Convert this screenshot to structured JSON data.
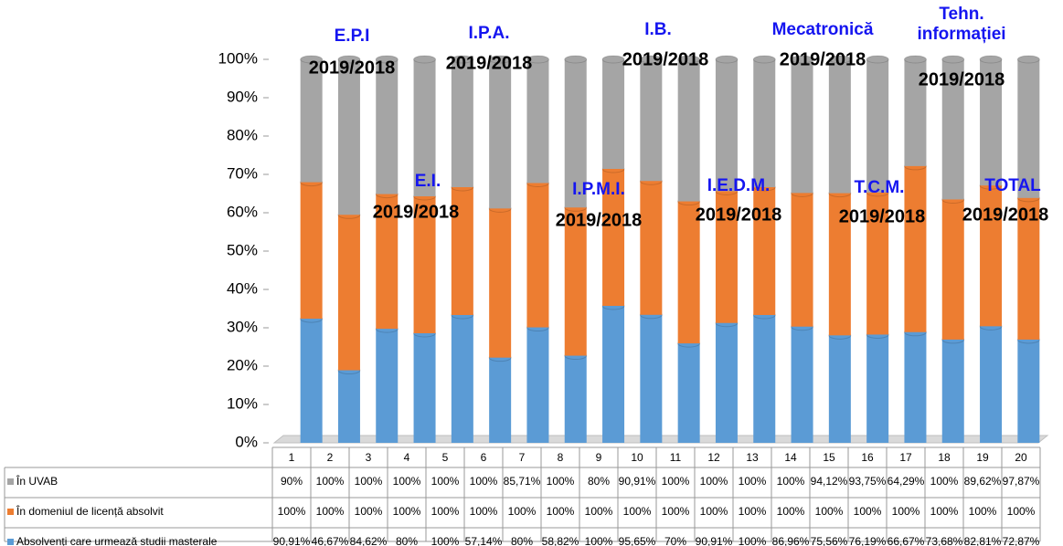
{
  "chart_data": {
    "type": "stacked_percent_bar",
    "categories": [
      "1",
      "2",
      "3",
      "4",
      "5",
      "6",
      "7",
      "8",
      "9",
      "10",
      "11",
      "12",
      "13",
      "14",
      "15",
      "16",
      "17",
      "18",
      "19",
      "20"
    ],
    "series": [
      {
        "name": "Absolvenți care urmează studii masterale",
        "color": "#5b9bd5",
        "values": [
          90.91,
          46.67,
          84.62,
          80,
          100,
          57.14,
          80,
          58.82,
          100,
          95.65,
          70,
          90.91,
          100,
          86.96,
          75.56,
          76.19,
          66.67,
          73.68,
          82.81,
          72.87
        ],
        "value_labels": [
          "90,91%",
          "46,67%",
          "84,62%",
          "80%",
          "100%",
          "57,14%",
          "80%",
          "58,82%",
          "100%",
          "95,65%",
          "70%",
          "90,91%",
          "100%",
          "86,96%",
          "75,56%",
          "76,19%",
          "66,67%",
          "73,68%",
          "82,81%",
          "72,87%"
        ]
      },
      {
        "name": "În domeniul de licență absolvit",
        "color": "#ed7d31",
        "values": [
          100,
          100,
          100,
          100,
          100,
          100,
          100,
          100,
          100,
          100,
          100,
          100,
          100,
          100,
          100,
          100,
          100,
          100,
          100,
          100
        ],
        "value_labels": [
          "100%",
          "100%",
          "100%",
          "100%",
          "100%",
          "100%",
          "100%",
          "100%",
          "100%",
          "100%",
          "100%",
          "100%",
          "100%",
          "100%",
          "100%",
          "100%",
          "100%",
          "100%",
          "100%",
          "100%"
        ]
      },
      {
        "name": "În UVAB",
        "color": "#a5a5a5",
        "values": [
          90,
          100,
          100,
          100,
          100,
          100,
          85.71,
          100,
          80,
          90.91,
          100,
          100,
          100,
          100,
          94.12,
          93.75,
          64.29,
          100,
          89.62,
          97.87
        ],
        "value_labels": [
          "90%",
          "100%",
          "100%",
          "100%",
          "100%",
          "100%",
          "85,71%",
          "100%",
          "80%",
          "90,91%",
          "100%",
          "100%",
          "100%",
          "100%",
          "94,12%",
          "93,75%",
          "64,29%",
          "100%",
          "89,62%",
          "97,87%"
        ]
      }
    ],
    "ylim": [
      0,
      100
    ],
    "yticks": [
      {
        "value": 0,
        "label": "0%"
      },
      {
        "value": 10,
        "label": "10%"
      },
      {
        "value": 20,
        "label": "20%"
      },
      {
        "value": 30,
        "label": "30%"
      },
      {
        "value": 40,
        "label": "40%"
      },
      {
        "value": 50,
        "label": "50%"
      },
      {
        "value": 60,
        "label": "60%"
      },
      {
        "value": 70,
        "label": "70%"
      },
      {
        "value": 80,
        "label": "80%"
      },
      {
        "value": 90,
        "label": "90%"
      },
      {
        "value": 100,
        "label": "100%"
      }
    ],
    "annotations": [
      {
        "label": "E.P.I",
        "period": "2019/2018"
      },
      {
        "label": "I.P.A.",
        "period": "2019/2018"
      },
      {
        "label": "I.B.",
        "period": "2019/2018"
      },
      {
        "label": "Mecatronică",
        "period": "2019/2018"
      },
      {
        "label": "Tehn. informației",
        "period": "2019/2018"
      },
      {
        "label": "E.I.",
        "period": "2019/2018"
      },
      {
        "label": "I.P.M.I.",
        "period": "2019/2018"
      },
      {
        "label": "I.E.D.M.",
        "period": "2019/2018"
      },
      {
        "label": "T.C.M.",
        "period": "2019/2018"
      },
      {
        "label": "TOTAL",
        "period": "2019/2018"
      }
    ]
  }
}
